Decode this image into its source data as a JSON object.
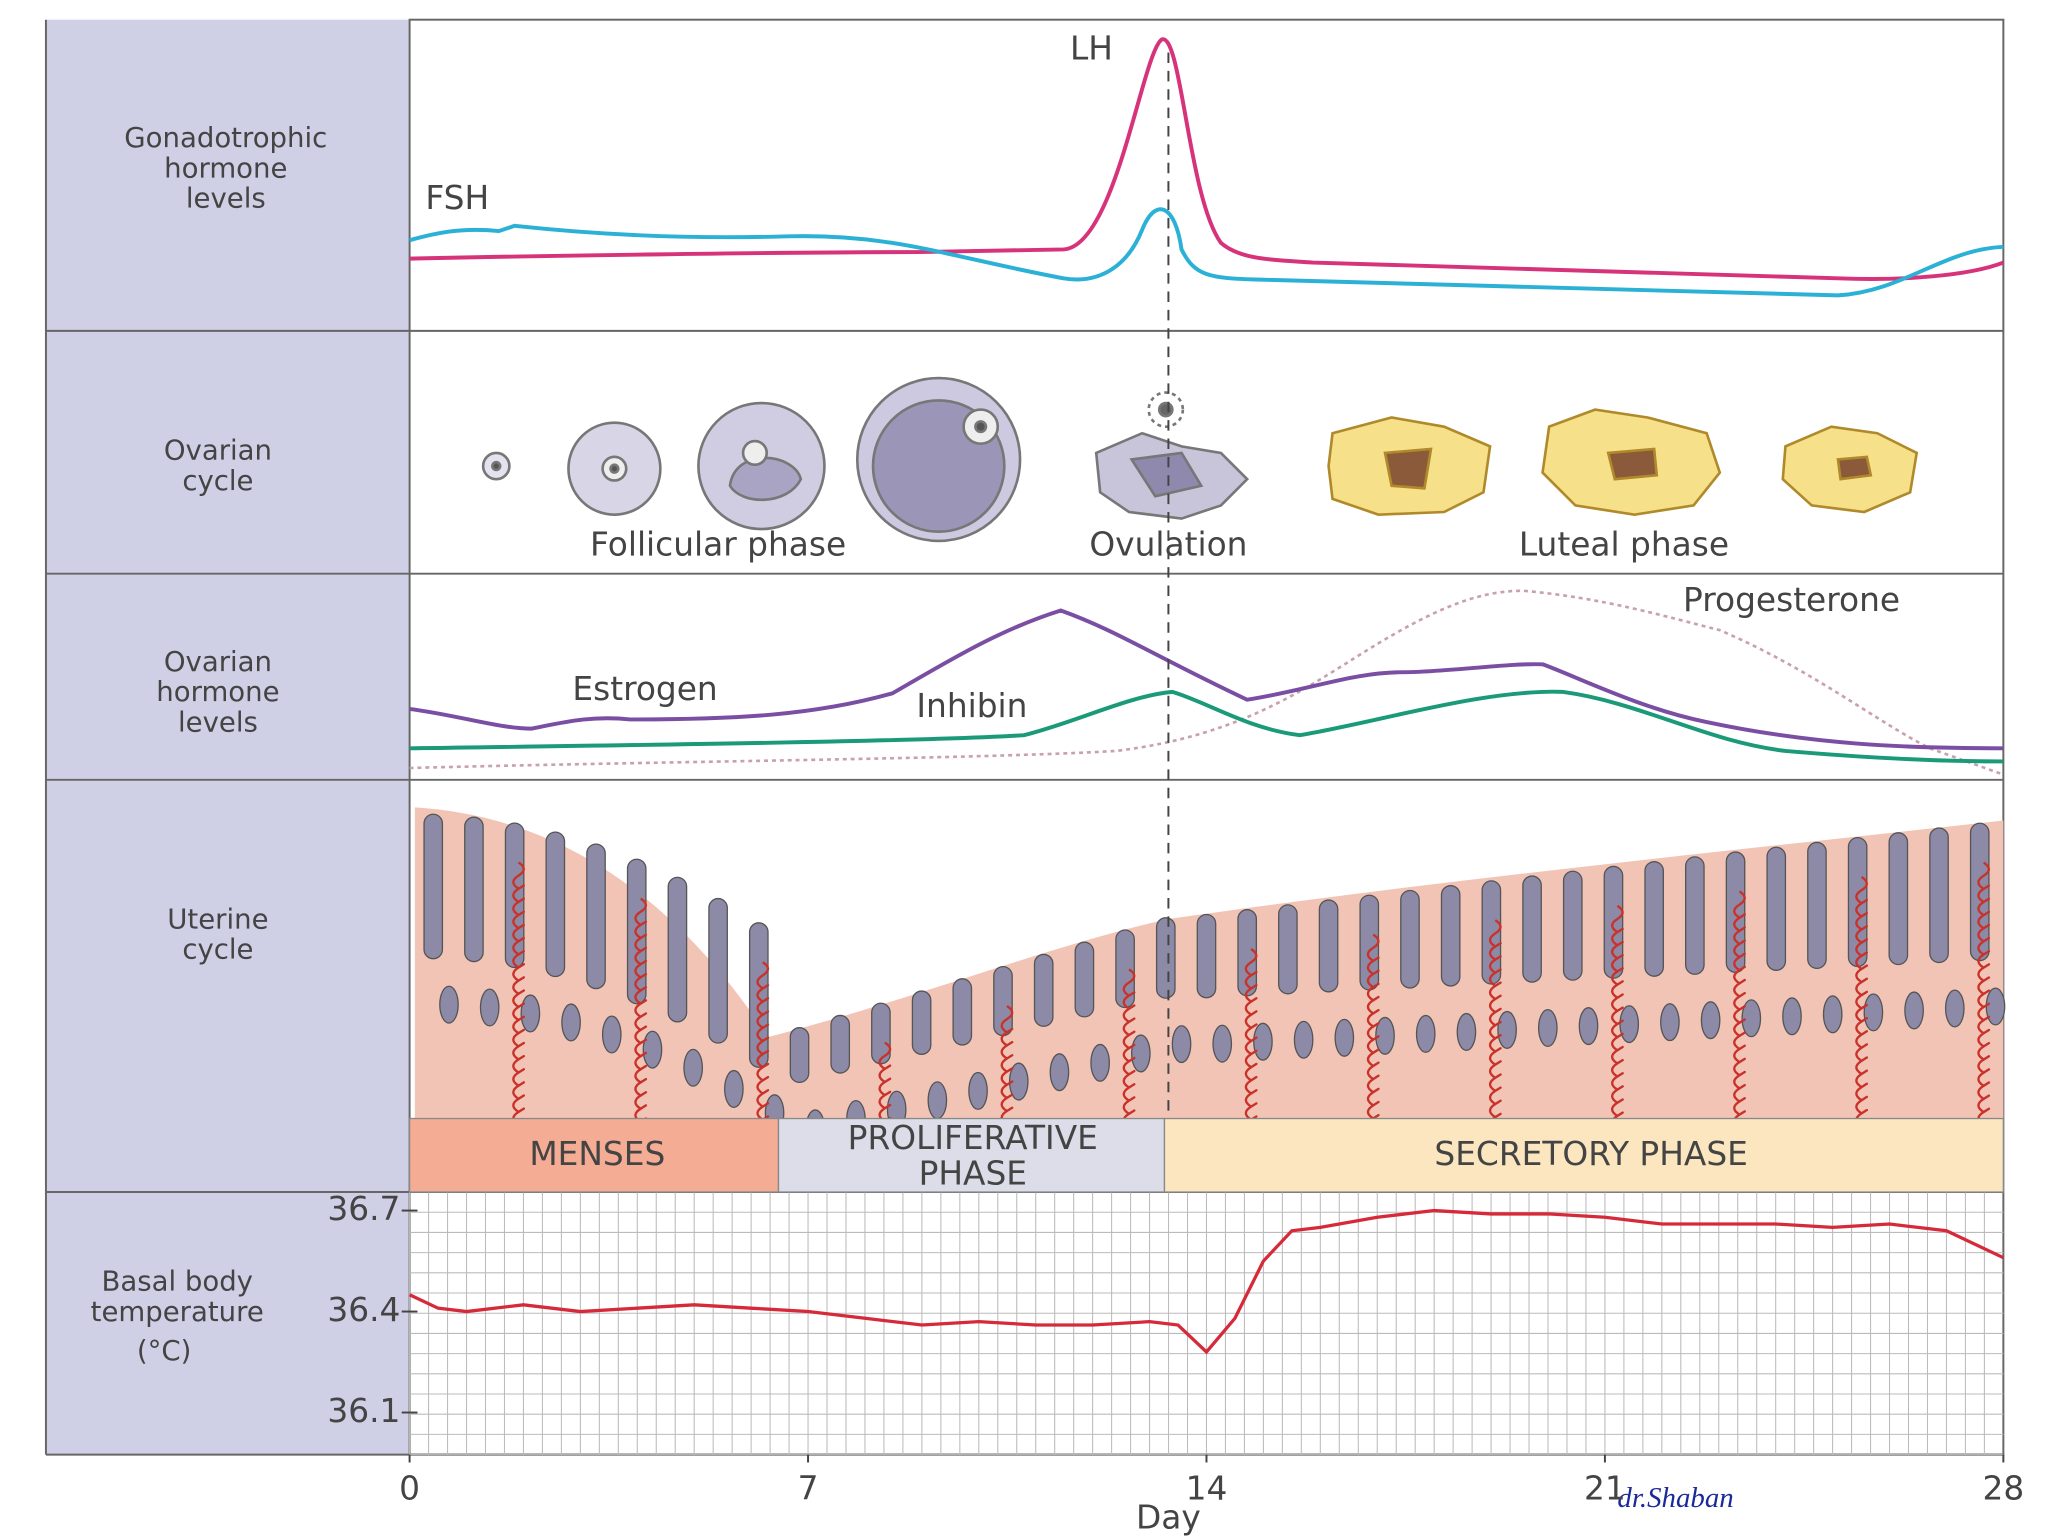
{
  "rows": [
    [
      "Gonadotrophic",
      "hormone",
      "levels"
    ],
    [
      "Ovarian",
      "cycle"
    ],
    [
      "Ovarian",
      "hormone",
      "levels"
    ],
    [
      "Uterine",
      "cycle"
    ]
  ],
  "gonadotrophic": {
    "lh": "LH",
    "fsh": "FSH"
  },
  "ovarian_cycle": [
    "Follicular phase",
    "Ovulation",
    "Luteal phase"
  ],
  "ovarian_hormones": [
    "Estrogen",
    "Inhibin",
    "Progesterone"
  ],
  "uterine_phases": [
    [
      "MENSES"
    ],
    [
      "PROLIFERATIVE",
      "PHASE"
    ],
    [
      "SECRETORY PHASE"
    ]
  ],
  "temperature": {
    "axis_label": [
      "Basal body",
      "temperature",
      "(°C)"
    ],
    "ylim": [
      35.975,
      36.755
    ],
    "yticks": [
      36.1,
      36.4,
      36.7
    ],
    "days": [
      0,
      0.5,
      1,
      2,
      3,
      4,
      5,
      6,
      7,
      8,
      9,
      10,
      11,
      12,
      13,
      13.5,
      14,
      14.5,
      15,
      15.5,
      16,
      17,
      18,
      19,
      20,
      21,
      22,
      23,
      24,
      25,
      26,
      27,
      28
    ],
    "values": [
      36.45,
      36.41,
      36.4,
      36.42,
      36.4,
      36.41,
      36.42,
      36.41,
      36.4,
      36.38,
      36.36,
      36.37,
      36.36,
      36.36,
      36.37,
      36.36,
      36.28,
      36.38,
      36.55,
      36.64,
      36.65,
      36.68,
      36.7,
      36.69,
      36.69,
      36.68,
      36.66,
      36.66,
      36.66,
      36.65,
      36.66,
      36.64,
      36.56
    ]
  },
  "day_axis": {
    "label": "Day",
    "xlim": [
      0,
      28
    ],
    "ticks": [
      0,
      7,
      14,
      21,
      28
    ]
  },
  "credit": "dr.Shaban"
}
